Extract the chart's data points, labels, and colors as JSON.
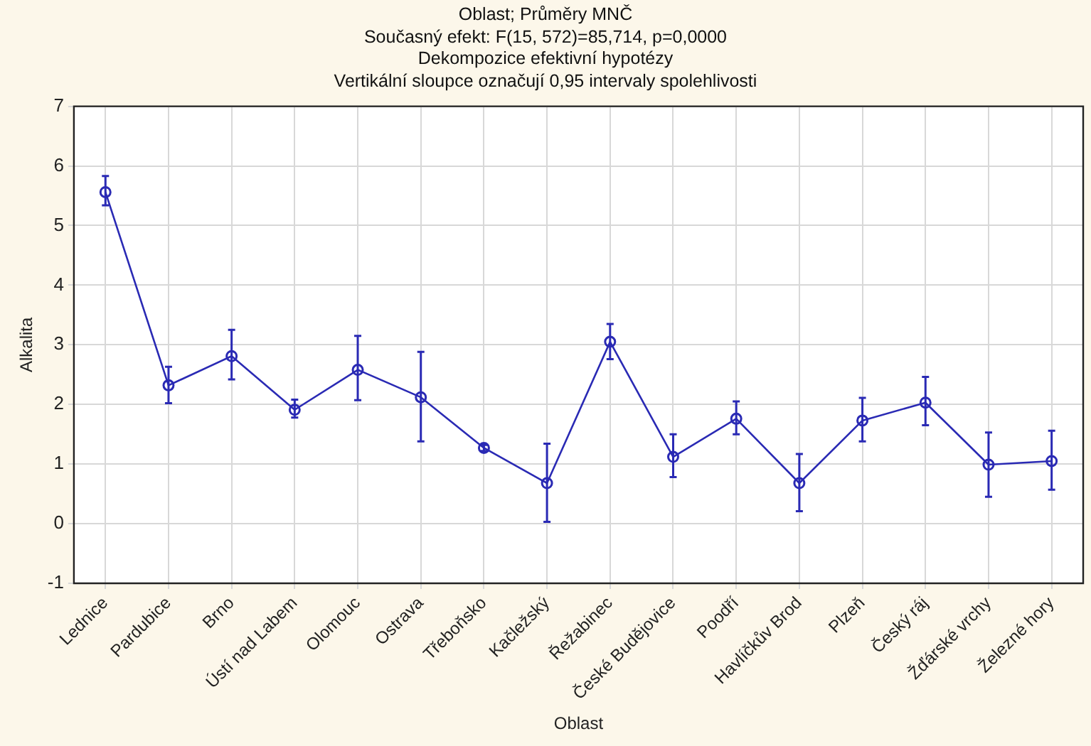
{
  "chart_data": {
    "type": "line",
    "title": "Oblast; Průměry MNČ",
    "subtitle": "Současný efekt: F(15, 572)=85,714, p=0,0000",
    "annotations": [
      "Dekompozice efektivní hypotézy",
      "Vertikální sloupce označují 0,95 intervaly spolehlivosti"
    ],
    "xlabel": "Oblast",
    "ylabel": "Alkalita",
    "categories": [
      "Lednice",
      "Pardubice",
      "Brno",
      "Ústí nad Labem",
      "Olomouc",
      "Ostrava",
      "Třeboňsko",
      "Kačležský",
      "Řežabinec",
      "České Budějovice",
      "Poodří",
      "Havlíčkův Brod",
      "Plzeň",
      "Český ráj",
      "Žďárské vrchy",
      "Železné hory"
    ],
    "series": [
      {
        "color": "#2a2ab4",
        "values": [
          5.56,
          2.32,
          2.81,
          1.91,
          2.58,
          2.12,
          1.27,
          0.68,
          3.05,
          1.12,
          1.76,
          0.68,
          1.73,
          2.03,
          0.99,
          1.05
        ],
        "errors": [
          [
            5.34,
            5.83
          ],
          [
            2.02,
            2.63
          ],
          [
            2.42,
            3.25
          ],
          [
            1.78,
            2.08
          ],
          [
            2.07,
            3.15
          ],
          [
            1.38,
            2.88
          ],
          [
            1.22,
            1.32
          ],
          [
            0.03,
            1.34
          ],
          [
            2.76,
            3.35
          ],
          [
            0.78,
            1.5
          ],
          [
            1.5,
            2.05
          ],
          [
            0.21,
            1.17
          ],
          [
            1.38,
            2.11
          ],
          [
            1.65,
            2.46
          ],
          [
            0.45,
            1.53
          ],
          [
            0.57,
            1.56
          ]
        ]
      }
    ],
    "ylim": [
      -1,
      7
    ],
    "yticks": [
      -1,
      0,
      1,
      2,
      3,
      4,
      5,
      6,
      7
    ],
    "grid": true,
    "legend": false,
    "marker": "circle",
    "line_style": "solid"
  }
}
